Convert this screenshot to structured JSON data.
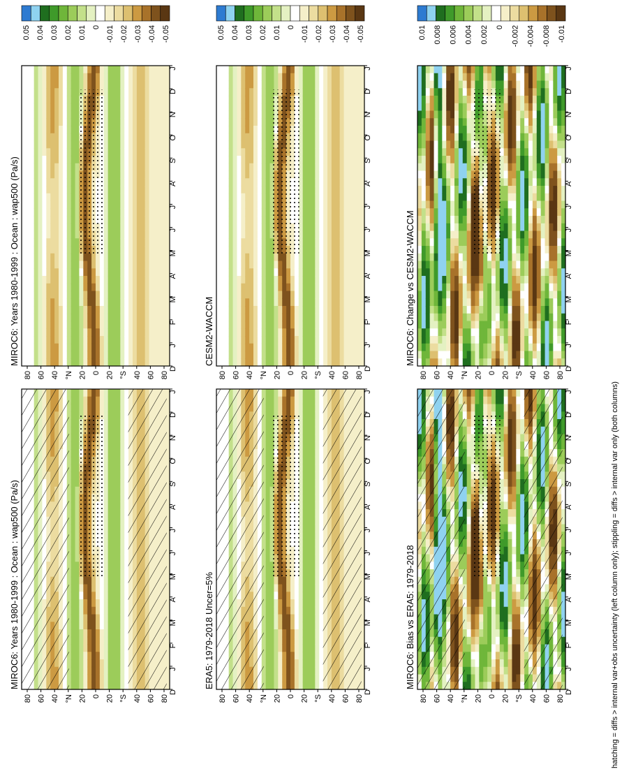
{
  "figure_note": "hatching = diffs > internal var+obs uncertainty (left column only); stippling = diffs > internal var only (both columns)",
  "axes": {
    "lat_ticks": [
      "80",
      "60",
      "40",
      "°N",
      "20",
      "0",
      "20",
      "°S",
      "40",
      "60",
      "80"
    ],
    "month_ticks": [
      "D",
      "J",
      "F",
      "M",
      "A",
      "M",
      "J",
      "J",
      "A",
      "S",
      "O",
      "N",
      "D",
      "J"
    ]
  },
  "colorbars": {
    "field": [
      "0.05",
      "0.04",
      "0.03",
      "0.02",
      "0.01",
      "0",
      "-0.01",
      "-0.02",
      "-0.03",
      "-0.04",
      "-0.05"
    ],
    "diff": [
      "0.01",
      "0.008",
      "0.006",
      "0.004",
      "0.002",
      "0",
      "-0.002",
      "-0.004",
      "-0.008",
      "-0.01"
    ],
    "colors": [
      "#2e7bd1",
      "#8fd2f0",
      "#1f6e1f",
      "#3f9a2a",
      "#6fb63a",
      "#9ccc5a",
      "#c3e08a",
      "#e4f1c2",
      "#ffffff",
      "#f5efc9",
      "#ecdca0",
      "#ddc070",
      "#cc9a42",
      "#a8722a",
      "#7e521d",
      "#5a3713"
    ]
  },
  "panels": [
    {
      "id": "miroc6-left",
      "title": "MIROC6: Years 1980-1999 : Ocean : wap500 (Pa/s)",
      "kind": "field",
      "hatched": true,
      "stippled": true
    },
    {
      "id": "miroc6-right",
      "title": "MIROC6: Years 1980-1999 : Ocean : wap500 (Pa/s)",
      "kind": "field",
      "hatched": false,
      "stippled": true
    },
    {
      "id": "era5",
      "title": "ERA5: 1979-2018 Uncer=5%",
      "kind": "field",
      "hatched": true,
      "stippled": true
    },
    {
      "id": "cesm2",
      "title": "CESM2-WACCM",
      "kind": "field",
      "hatched": false,
      "stippled": true
    },
    {
      "id": "bias",
      "title": "MIROC6: Bias vs ERA5: 1979-2018",
      "kind": "diff",
      "hatched": true,
      "stippled": true
    },
    {
      "id": "change",
      "title": "MIROC6: Change vs CESM2-WACCM",
      "kind": "diff",
      "hatched": false,
      "stippled": true
    }
  ],
  "chart_data": {
    "type": "heatmap",
    "variable": "wap500",
    "units": "Pa/s",
    "x_axis": "month",
    "y_axis": "latitude",
    "ylim": [
      -90,
      90
    ],
    "field_levels": [
      0.05,
      0.04,
      0.03,
      0.02,
      0.01,
      0,
      -0.01,
      -0.02,
      -0.03,
      -0.04,
      -0.05
    ],
    "diff_levels": [
      0.01,
      0.008,
      0.006,
      0.004,
      0.002,
      0,
      -0.002,
      -0.004,
      -0.008,
      -0.01
    ]
  }
}
